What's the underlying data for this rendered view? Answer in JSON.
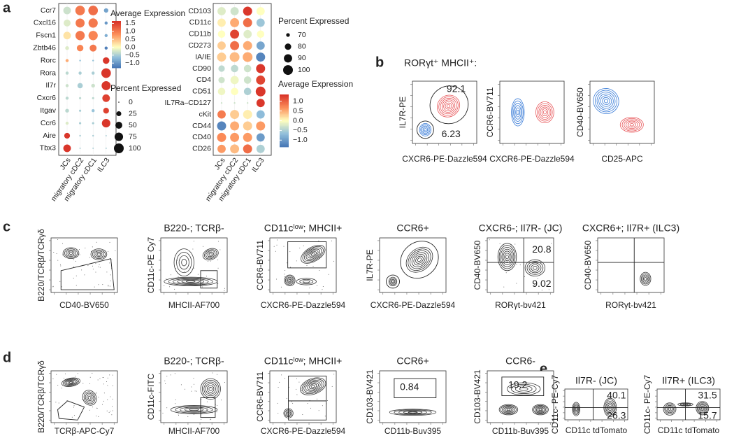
{
  "panel_a": {
    "label": "a",
    "dotplots": [
      {
        "genes": [
          "Ccr7",
          "Cxcl16",
          "Fscn1",
          "Zbtb46",
          "Rorc",
          "Rora",
          "Il7r",
          "Cxcr6",
          "Itgav",
          "Ccr6",
          "Aire",
          "Tbx3"
        ],
        "groups": [
          "JCs",
          "migratory cDC2",
          "migratory cDC1",
          "ILC3"
        ],
        "average_expression": [
          [
            -0.3,
            1.0,
            1.1,
            -0.9
          ],
          [
            -0.2,
            1.0,
            1.0,
            -1.0
          ],
          [
            0.2,
            1.0,
            0.9,
            -0.8
          ],
          [
            -0.2,
            0.9,
            1.0,
            -1.2
          ],
          [
            0.6,
            -0.6,
            -0.6,
            1.6
          ],
          [
            -0.4,
            -0.5,
            -0.5,
            1.6
          ],
          [
            -0.3,
            -0.5,
            -0.3,
            1.6
          ],
          [
            -0.4,
            -0.4,
            -0.4,
            1.5
          ],
          [
            -0.4,
            -0.5,
            -0.6,
            1.5
          ],
          [
            -0.2,
            -0.5,
            -0.5,
            1.6
          ],
          [
            1.6,
            -0.5,
            -0.5,
            -0.5
          ],
          [
            1.6,
            -0.5,
            -0.5,
            -0.5
          ]
        ],
        "percent_expressed": [
          [
            60,
            95,
            95,
            20
          ],
          [
            50,
            85,
            90,
            10
          ],
          [
            60,
            90,
            90,
            10
          ],
          [
            15,
            45,
            50,
            10
          ],
          [
            10,
            3,
            3,
            45
          ],
          [
            10,
            10,
            10,
            95
          ],
          [
            10,
            30,
            15,
            85
          ],
          [
            10,
            5,
            5,
            60
          ],
          [
            15,
            5,
            10,
            35
          ],
          [
            10,
            5,
            5,
            75
          ],
          [
            35,
            3,
            3,
            2
          ],
          [
            60,
            2,
            2,
            2
          ]
        ],
        "color_legend": {
          "title": "Average Expression",
          "ticks": [
            1.5,
            {
              "value": 1,
              "label": "1.0"
            },
            0.5,
            {
              "value": 0,
              "label": "0.0"
            },
            {
              "value": -0.5,
              "label": "−0.5"
            },
            {
              "value": -1,
              "label": "−1.0"
            }
          ],
          "lim": [
            -1.3,
            1.65
          ]
        },
        "size_legend": {
          "title": "Percent Expressed",
          "ticks": [
            0,
            25,
            50,
            75,
            100
          ],
          "lim": [
            0,
            100
          ]
        }
      },
      {
        "genes": [
          "CD103",
          "CD11c",
          "CD11b",
          "CD273",
          "IA/IE",
          "CD90",
          "CD4",
          "CD51",
          "IL7Ra–CD127",
          "cKit",
          "CD44",
          "CD40",
          "CD26"
        ],
        "groups": [
          "JCs",
          "migratory cDC2",
          "migratory cDC1",
          "ILC3"
        ],
        "average_expression": [
          [
            -0.2,
            -0.3,
            1.3,
            0.0
          ],
          [
            0.1,
            0.5,
            0.9,
            -0.6
          ],
          [
            0.0,
            1.2,
            -0.2,
            0.0
          ],
          [
            0.3,
            0.9,
            0.5,
            -0.9
          ],
          [
            0.3,
            0.4,
            0.5,
            -1.2
          ],
          [
            -0.4,
            -0.4,
            -0.3,
            1.3
          ],
          [
            -0.3,
            -0.1,
            -0.3,
            1.2
          ],
          [
            -0.1,
            0.0,
            -0.5,
            1.3
          ],
          [
            -0.3,
            -0.3,
            -0.3,
            1.3
          ],
          [
            0.8,
            0.3,
            0.1,
            -0.7
          ],
          [
            -1.2,
            0.5,
            0.3,
            0.6
          ],
          [
            0.7,
            0.6,
            0.6,
            -1.0
          ],
          [
            0.6,
            0.4,
            0.9,
            -0.5
          ]
        ],
        "percent_expressed": [
          [
            90,
            90,
            95,
            90
          ],
          [
            90,
            95,
            95,
            90
          ],
          [
            85,
            95,
            90,
            85
          ],
          [
            90,
            95,
            95,
            90
          ],
          [
            95,
            100,
            100,
            95
          ],
          [
            80,
            85,
            85,
            95
          ],
          [
            80,
            90,
            85,
            95
          ],
          [
            85,
            85,
            85,
            100
          ],
          [
            66,
            66,
            66,
            90
          ],
          [
            90,
            95,
            95,
            90
          ],
          [
            95,
            95,
            95,
            95
          ],
          [
            95,
            95,
            95,
            90
          ],
          [
            90,
            95,
            95,
            90
          ]
        ],
        "size_legend": {
          "title": "Percent Expressed",
          "ticks": [
            70,
            80,
            90,
            100
          ],
          "lim": [
            65,
            100
          ]
        },
        "color_legend": {
          "title": "Average Expression",
          "ticks": [
            {
              "value": 1,
              "label": "1.0"
            },
            0.5,
            {
              "value": 0,
              "label": "0.0"
            },
            {
              "value": -0.5,
              "label": "−0.5"
            },
            {
              "value": -1,
              "label": "−1.0"
            }
          ],
          "lim": [
            -1.35,
            1.35
          ]
        }
      }
    ]
  },
  "panel_b": {
    "label": "b",
    "title": "RORγt⁺ MHCII⁺:",
    "plots": [
      {
        "y_label": "IL7R-PE",
        "x_label": "CXCR6-PE-Dazzle594",
        "gates": [
          92.1,
          6.23
        ]
      },
      {
        "y_label": "CCR6-BV711",
        "x_label": "CXCR6-PE-Dazzle594"
      },
      {
        "y_label": "CD40-BV650",
        "x_label": "CD25-APC"
      }
    ]
  },
  "panel_c": {
    "label": "c",
    "plots": [
      {
        "y_label": "B220/TCRβ/TCRγδ",
        "x_label": "CD40-BV650"
      },
      {
        "title": "B220-; TCRβ-",
        "y_label": "CD11c-PE Cy7",
        "x_label": "MHCII-AF700"
      },
      {
        "title": "CD11cˡᵒʷ; MHCII+",
        "y_label": "CCR6-BV711",
        "x_label": "CXCR6-PE-Dazzle594"
      },
      {
        "title": "CCR6+",
        "y_label": "IL7R-PE",
        "x_label": "CXCR6-PE-Dazzle594"
      },
      {
        "title": "CXCR6-; Il7R- (JC)",
        "y_label": "CD40-BV650",
        "x_label": "RORγt-bv421",
        "gates": [
          20.8,
          9.02
        ]
      },
      {
        "title": "CXCR6+; Il7R+ (ILC3)",
        "y_label": "CD40-BV650",
        "x_label": "RORγt-bv421"
      }
    ]
  },
  "panel_d": {
    "label": "d",
    "plots": [
      {
        "y_label": "B220/TCRβ/TCRγδ",
        "x_label": "TCRβ-APC-Cy7"
      },
      {
        "title": "B220-; TCRβ-",
        "y_label": "CD11c-FITC",
        "x_label": "MHCII-AF700"
      },
      {
        "title": "CD11cˡᵒʷ; MHCII+",
        "y_label": "CCR6-BV711",
        "x_label": "CXCR6-PE-Dazzle594"
      },
      {
        "title": "CCR6+",
        "y_label": "CD103-BV421",
        "x_label": "CD11b-Buv395",
        "gates": [
          0.84
        ]
      },
      {
        "title": "CCR6-",
        "y_label": "CD103-BV421",
        "x_label": "CD11b-Buv395",
        "gates": [
          19.2
        ]
      }
    ]
  },
  "panel_e": {
    "label": "e",
    "plots": [
      {
        "title": "Il7R- (JC)",
        "y_label": "CD11c- PE-Cy7",
        "x_label": "CD11c tdTomato",
        "gates": [
          40.1,
          26.3
        ]
      },
      {
        "title": "Il7R+  (ILC3)",
        "y_label": "CD11c- PE-Cy7",
        "x_label": "CD11c tdTomato",
        "gates": [
          31.5,
          15.7
        ]
      }
    ]
  }
}
